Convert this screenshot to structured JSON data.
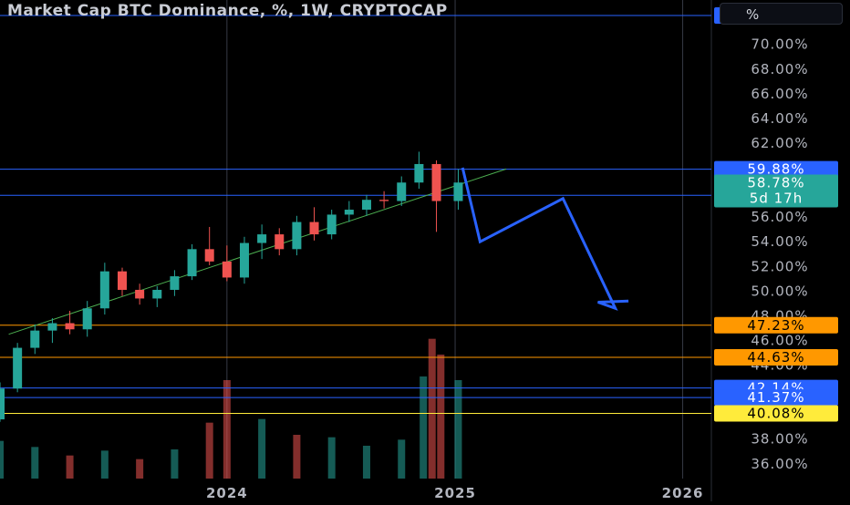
{
  "header": {
    "title": "Market Cap BTC Dominance, %, 1W, CRYPTOCAP",
    "unit_button": "%"
  },
  "colors": {
    "background": "#000000",
    "up": "#26a69a",
    "down": "#ef5350",
    "trend_line": "#4caf50",
    "projection": "#2962ff",
    "level_blue": "#2962ff",
    "level_orange": "#ff9800",
    "level_yellow": "#ffeb3b",
    "badge_green": "#26a69a"
  },
  "chart_data": {
    "type": "candlestick",
    "title": "Market Cap BTC Dominance, %, 1W, CRYPTOCAP",
    "yaxis": {
      "ticks": [
        "36.00%",
        "38.00%",
        "40.00%",
        "42.00%",
        "44.00%",
        "46.00%",
        "48.00%",
        "50.00%",
        "52.00%",
        "54.00%",
        "56.00%",
        "58.00%",
        "60.00%",
        "62.00%",
        "64.00%",
        "66.00%",
        "68.00%",
        "70.00%"
      ],
      "tick_values": [
        36,
        38,
        40,
        42,
        44,
        46,
        48,
        50,
        52,
        54,
        56,
        58,
        60,
        62,
        64,
        66,
        68,
        70
      ],
      "range": [
        34.8,
        73.6
      ],
      "unit": "%"
    },
    "xaxis": {
      "ticks": [
        "2024",
        "2025",
        "2026"
      ],
      "tick_dates": [
        "2024-01-01",
        "2025-01-01",
        "2026-01-01"
      ],
      "range": [
        "2023-01-02",
        "2026-02-16"
      ]
    },
    "candles": [
      {
        "date": "2023-01-02",
        "o": 39.6,
        "h": 42.6,
        "l": 39.4,
        "c": 42.1
      },
      {
        "date": "2023-01-30",
        "o": 42.1,
        "h": 45.8,
        "l": 41.8,
        "c": 45.4
      },
      {
        "date": "2023-02-27",
        "o": 45.4,
        "h": 47.3,
        "l": 44.9,
        "c": 46.8
      },
      {
        "date": "2023-03-27",
        "o": 46.8,
        "h": 47.8,
        "l": 45.8,
        "c": 47.4
      },
      {
        "date": "2023-04-24",
        "o": 47.4,
        "h": 48.4,
        "l": 46.5,
        "c": 46.9
      },
      {
        "date": "2023-05-22",
        "o": 46.9,
        "h": 49.2,
        "l": 46.3,
        "c": 48.6
      },
      {
        "date": "2023-06-19",
        "o": 48.6,
        "h": 52.3,
        "l": 48.1,
        "c": 51.6
      },
      {
        "date": "2023-07-17",
        "o": 51.6,
        "h": 51.9,
        "l": 49.6,
        "c": 50.1
      },
      {
        "date": "2023-08-14",
        "o": 50.1,
        "h": 50.6,
        "l": 48.9,
        "c": 49.4
      },
      {
        "date": "2023-09-11",
        "o": 49.4,
        "h": 50.4,
        "l": 48.7,
        "c": 50.1
      },
      {
        "date": "2023-10-09",
        "o": 50.1,
        "h": 51.7,
        "l": 49.6,
        "c": 51.2
      },
      {
        "date": "2023-11-06",
        "o": 51.2,
        "h": 53.8,
        "l": 50.9,
        "c": 53.4
      },
      {
        "date": "2023-12-04",
        "o": 53.4,
        "h": 55.2,
        "l": 52.1,
        "c": 52.4
      },
      {
        "date": "2024-01-01",
        "o": 52.4,
        "h": 53.7,
        "l": 50.8,
        "c": 51.1
      },
      {
        "date": "2024-01-29",
        "o": 51.1,
        "h": 54.4,
        "l": 50.6,
        "c": 53.9
      },
      {
        "date": "2024-02-26",
        "o": 53.9,
        "h": 55.4,
        "l": 52.6,
        "c": 54.6
      },
      {
        "date": "2024-03-25",
        "o": 54.6,
        "h": 55.1,
        "l": 52.9,
        "c": 53.4
      },
      {
        "date": "2024-04-22",
        "o": 53.4,
        "h": 56.1,
        "l": 52.9,
        "c": 55.6
      },
      {
        "date": "2024-05-20",
        "o": 55.6,
        "h": 56.8,
        "l": 54.1,
        "c": 54.6
      },
      {
        "date": "2024-06-17",
        "o": 54.6,
        "h": 56.6,
        "l": 54.2,
        "c": 56.2
      },
      {
        "date": "2024-07-15",
        "o": 56.2,
        "h": 57.3,
        "l": 55.6,
        "c": 56.6
      },
      {
        "date": "2024-08-12",
        "o": 56.6,
        "h": 57.8,
        "l": 56.1,
        "c": 57.4
      },
      {
        "date": "2024-09-09",
        "o": 57.4,
        "h": 58.1,
        "l": 56.7,
        "c": 57.3
      },
      {
        "date": "2024-10-07",
        "o": 57.3,
        "h": 59.3,
        "l": 56.9,
        "c": 58.8
      },
      {
        "date": "2024-11-04",
        "o": 58.8,
        "h": 61.3,
        "l": 58.3,
        "c": 60.3
      },
      {
        "date": "2024-12-02",
        "o": 60.3,
        "h": 60.6,
        "l": 54.8,
        "c": 57.3
      },
      {
        "date": "2025-01-06",
        "o": 57.3,
        "h": 59.9,
        "l": 56.6,
        "c": 58.8
      }
    ],
    "volume": [
      {
        "date": "2023-01-02",
        "v": 3.1,
        "up": true
      },
      {
        "date": "2023-02-27",
        "v": 2.6,
        "up": true
      },
      {
        "date": "2023-04-24",
        "v": 1.9,
        "up": false
      },
      {
        "date": "2023-06-19",
        "v": 2.3,
        "up": true
      },
      {
        "date": "2023-08-14",
        "v": 1.6,
        "up": false
      },
      {
        "date": "2023-10-09",
        "v": 2.4,
        "up": true
      },
      {
        "date": "2023-12-04",
        "v": 4.6,
        "up": false
      },
      {
        "date": "2024-01-01",
        "v": 8.1,
        "up": false
      },
      {
        "date": "2024-02-26",
        "v": 4.9,
        "up": true
      },
      {
        "date": "2024-04-22",
        "v": 3.6,
        "up": false
      },
      {
        "date": "2024-06-17",
        "v": 3.4,
        "up": true
      },
      {
        "date": "2024-08-12",
        "v": 2.7,
        "up": true
      },
      {
        "date": "2024-10-07",
        "v": 3.2,
        "up": true
      },
      {
        "date": "2024-11-11",
        "v": 8.4,
        "up": true
      },
      {
        "date": "2024-11-25",
        "v": 11.5,
        "up": false
      },
      {
        "date": "2024-12-09",
        "v": 10.2,
        "up": false
      },
      {
        "date": "2025-01-06",
        "v": 8.1,
        "up": true
      }
    ],
    "horizontal_levels": [
      {
        "value": 72.34,
        "label": "72.34%",
        "color": "#2962ff"
      },
      {
        "value": 59.88,
        "label": "59.88%",
        "color": "#2962ff"
      },
      {
        "value": 57.77,
        "label": "57.77%",
        "color": "#2962ff"
      },
      {
        "value": 47.23,
        "label": "47.23%",
        "color": "#ff9800"
      },
      {
        "value": 44.63,
        "label": "44.63%",
        "color": "#ff9800"
      },
      {
        "value": 42.14,
        "label": "42.14%",
        "color": "#2962ff"
      },
      {
        "value": 41.37,
        "label": "41.37%",
        "color": "#2962ff"
      },
      {
        "value": 40.08,
        "label": "40.08%",
        "color": "#ffeb3b"
      }
    ],
    "current_price": {
      "label": "58.78%",
      "countdown": "5d 17h",
      "value": 58.78
    },
    "trend_line": [
      {
        "date": "2023-01-16",
        "y": 46.5
      },
      {
        "date": "2025-03-24",
        "y": 59.9
      }
    ],
    "projection_path": [
      {
        "date": "2025-01-13",
        "y": 60.0
      },
      {
        "date": "2025-02-10",
        "y": 54.0
      },
      {
        "date": "2025-06-23",
        "y": 57.5
      },
      {
        "date": "2025-09-15",
        "y": 48.6
      },
      {
        "date": "2025-08-18",
        "y": 49.1
      },
      {
        "date": "2025-10-06",
        "y": 49.2
      }
    ]
  }
}
